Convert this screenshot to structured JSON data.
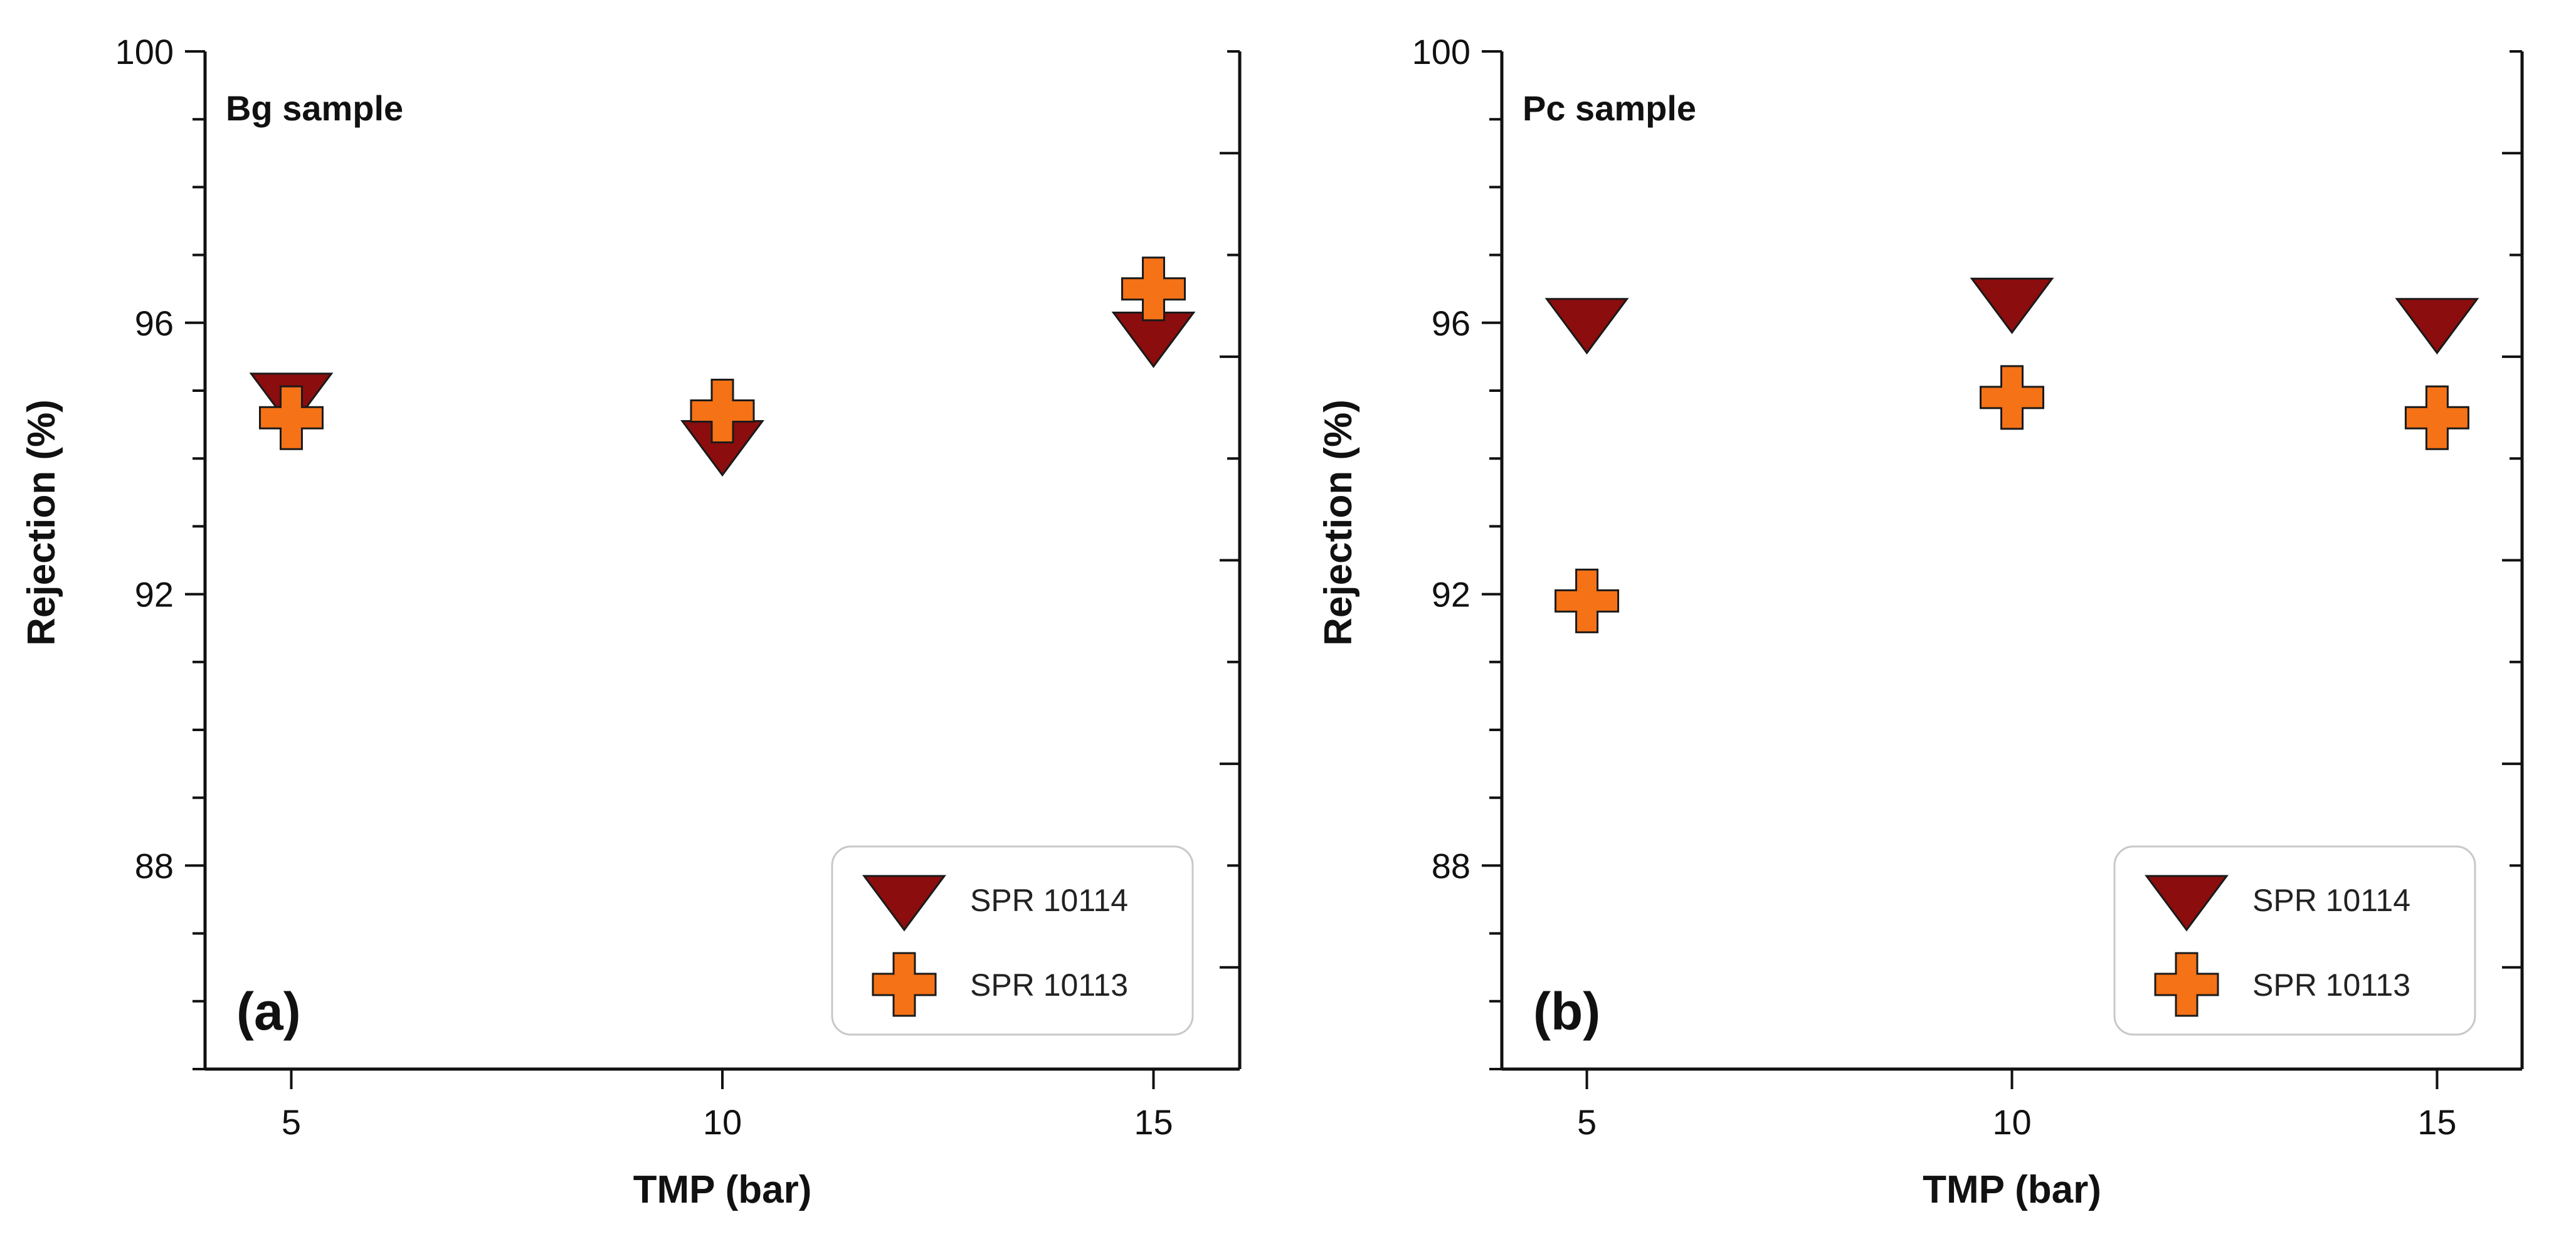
{
  "colors": {
    "spr10114": "#8b0d0d",
    "spr10113": "#f57216",
    "marker_edge": "#1a1a1a",
    "axis": "#111111",
    "legend_border": "#c8c8c8"
  },
  "chart_data": [
    {
      "type": "scatter",
      "id": "a",
      "title": "Bg sample",
      "panel_label": "(a)",
      "xlabel": "TMP (bar)",
      "ylabel": "Rejection (%)",
      "x_ticks": [
        "5",
        "10",
        "15"
      ],
      "y_ticks": [
        "88",
        "92",
        "96",
        "100"
      ],
      "xlim": [
        4,
        16
      ],
      "ylim": [
        85,
        100
      ],
      "legend_position": "bottom-right",
      "series": [
        {
          "name": "SPR 10114",
          "marker": "triangle-down",
          "color": "#8b0d0d",
          "x": [
            5,
            10,
            15
          ],
          "y": [
            94.9,
            94.2,
            95.8
          ]
        },
        {
          "name": "SPR 10113",
          "marker": "cross",
          "color": "#f57216",
          "x": [
            5,
            10,
            15
          ],
          "y": [
            94.6,
            94.7,
            96.5
          ]
        }
      ]
    },
    {
      "type": "scatter",
      "id": "b",
      "title": "Pc sample",
      "panel_label": "(b)",
      "xlabel": "TMP (bar)",
      "ylabel": "Rejection (%)",
      "x_ticks": [
        "5",
        "10",
        "15"
      ],
      "y_ticks": [
        "88",
        "92",
        "96",
        "100"
      ],
      "xlim": [
        4,
        16
      ],
      "ylim": [
        85,
        100
      ],
      "legend_position": "bottom-right",
      "series": [
        {
          "name": "SPR 10114",
          "marker": "triangle-down",
          "color": "#8b0d0d",
          "x": [
            5,
            10,
            15
          ],
          "y": [
            96.0,
            96.3,
            96.0
          ]
        },
        {
          "name": "SPR 10113",
          "marker": "cross",
          "color": "#f57216",
          "x": [
            5,
            10,
            15
          ],
          "y": [
            91.9,
            94.9,
            94.6
          ]
        }
      ]
    }
  ]
}
